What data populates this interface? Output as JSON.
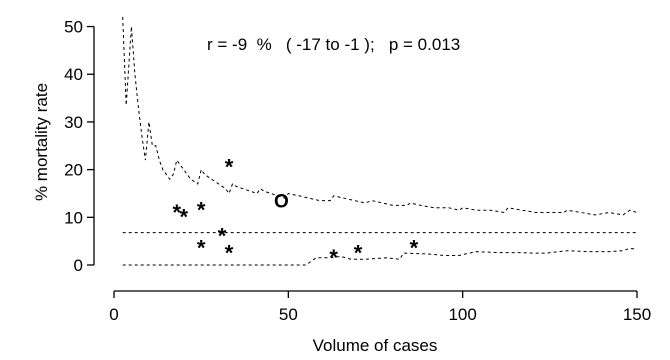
{
  "chart_data": {
    "type": "scatter",
    "xlabel": "Volume of cases",
    "ylabel": "% mortality rate",
    "xlim": [
      0,
      150
    ],
    "ylim": [
      0,
      52
    ],
    "x_ticks": [
      0,
      50,
      100,
      150
    ],
    "y_ticks": [
      0,
      10,
      20,
      30,
      40,
      50
    ],
    "annotation": "r = -9  %   ( -17 to -1 );   p = 0.013",
    "mean_rate": 6.8,
    "points": [
      {
        "x": 33,
        "y": 21.5,
        "marker": "*"
      },
      {
        "x": 18,
        "y": 12.0,
        "marker": "*"
      },
      {
        "x": 20,
        "y": 11.0,
        "marker": "*"
      },
      {
        "x": 25,
        "y": 12.5,
        "marker": "*"
      },
      {
        "x": 31,
        "y": 7.0,
        "marker": "*"
      },
      {
        "x": 25,
        "y": 4.5,
        "marker": "*"
      },
      {
        "x": 33,
        "y": 3.5,
        "marker": "*"
      },
      {
        "x": 63,
        "y": 2.5,
        "marker": "*"
      },
      {
        "x": 70,
        "y": 3.5,
        "marker": "*"
      },
      {
        "x": 86,
        "y": 4.5,
        "marker": "*"
      },
      {
        "x": 48,
        "y": 13.5,
        "marker": "O"
      }
    ],
    "upper_limit": [
      [
        2.5,
        52
      ],
      [
        3.5,
        33.5
      ],
      [
        5,
        50
      ],
      [
        6,
        40
      ],
      [
        7,
        33
      ],
      [
        8,
        27
      ],
      [
        9,
        22
      ],
      [
        10,
        30
      ],
      [
        11,
        25
      ],
      [
        12,
        25
      ],
      [
        13,
        22
      ],
      [
        14,
        20
      ],
      [
        15,
        19
      ],
      [
        16,
        18
      ],
      [
        17,
        19
      ],
      [
        18,
        22
      ],
      [
        19,
        21
      ],
      [
        20,
        20
      ],
      [
        21,
        19
      ],
      [
        22,
        18
      ],
      [
        23,
        17.5
      ],
      [
        24,
        17
      ],
      [
        25,
        20
      ],
      [
        26,
        19
      ],
      [
        27,
        18.5
      ],
      [
        28,
        18
      ],
      [
        29,
        17.5
      ],
      [
        30,
        17
      ],
      [
        31,
        16.5
      ],
      [
        32,
        16
      ],
      [
        33,
        15
      ],
      [
        34,
        17
      ],
      [
        35,
        16.5
      ],
      [
        37,
        16
      ],
      [
        39,
        15.5
      ],
      [
        41,
        15
      ],
      [
        42,
        16
      ],
      [
        43,
        15.5
      ],
      [
        45,
        15
      ],
      [
        47,
        14.5
      ],
      [
        49,
        14
      ],
      [
        50,
        15
      ],
      [
        53,
        14.5
      ],
      [
        56,
        14
      ],
      [
        59,
        13.5
      ],
      [
        62,
        13.5
      ],
      [
        63,
        14.5
      ],
      [
        66,
        14
      ],
      [
        69,
        13.5
      ],
      [
        72,
        13
      ],
      [
        74,
        13.5
      ],
      [
        77,
        13
      ],
      [
        80,
        12.5
      ],
      [
        84,
        12.5
      ],
      [
        85,
        13
      ],
      [
        88,
        12.5
      ],
      [
        92,
        12
      ],
      [
        96,
        12
      ],
      [
        99,
        11.5
      ],
      [
        100,
        12
      ],
      [
        104,
        11.5
      ],
      [
        108,
        11.5
      ],
      [
        112,
        11
      ],
      [
        113,
        12
      ],
      [
        117,
        11.5
      ],
      [
        121,
        11
      ],
      [
        125,
        11
      ],
      [
        129,
        11
      ],
      [
        130,
        11.5
      ],
      [
        134,
        11
      ],
      [
        138,
        10.5
      ],
      [
        142,
        11
      ],
      [
        146,
        10.5
      ],
      [
        148,
        11.5
      ],
      [
        150,
        11
      ]
    ],
    "lower_limit": [
      [
        2.5,
        0
      ],
      [
        55,
        0
      ],
      [
        56,
        0.5
      ],
      [
        57,
        1
      ],
      [
        58,
        1.5
      ],
      [
        62,
        1.5
      ],
      [
        65,
        1.8
      ],
      [
        68,
        1.2
      ],
      [
        72,
        1.2
      ],
      [
        78,
        1.5
      ],
      [
        82,
        1.2
      ],
      [
        83,
        2.5
      ],
      [
        90,
        2.3
      ],
      [
        95,
        2.0
      ],
      [
        99,
        2.0
      ],
      [
        100,
        2.2
      ],
      [
        104,
        2.8
      ],
      [
        110,
        2.6
      ],
      [
        116,
        2.6
      ],
      [
        120,
        2.5
      ],
      [
        124,
        2.5
      ],
      [
        130,
        3.0
      ],
      [
        136,
        2.8
      ],
      [
        142,
        2.8
      ],
      [
        146,
        3.0
      ],
      [
        148,
        3.5
      ],
      [
        150,
        3.3
      ]
    ]
  }
}
